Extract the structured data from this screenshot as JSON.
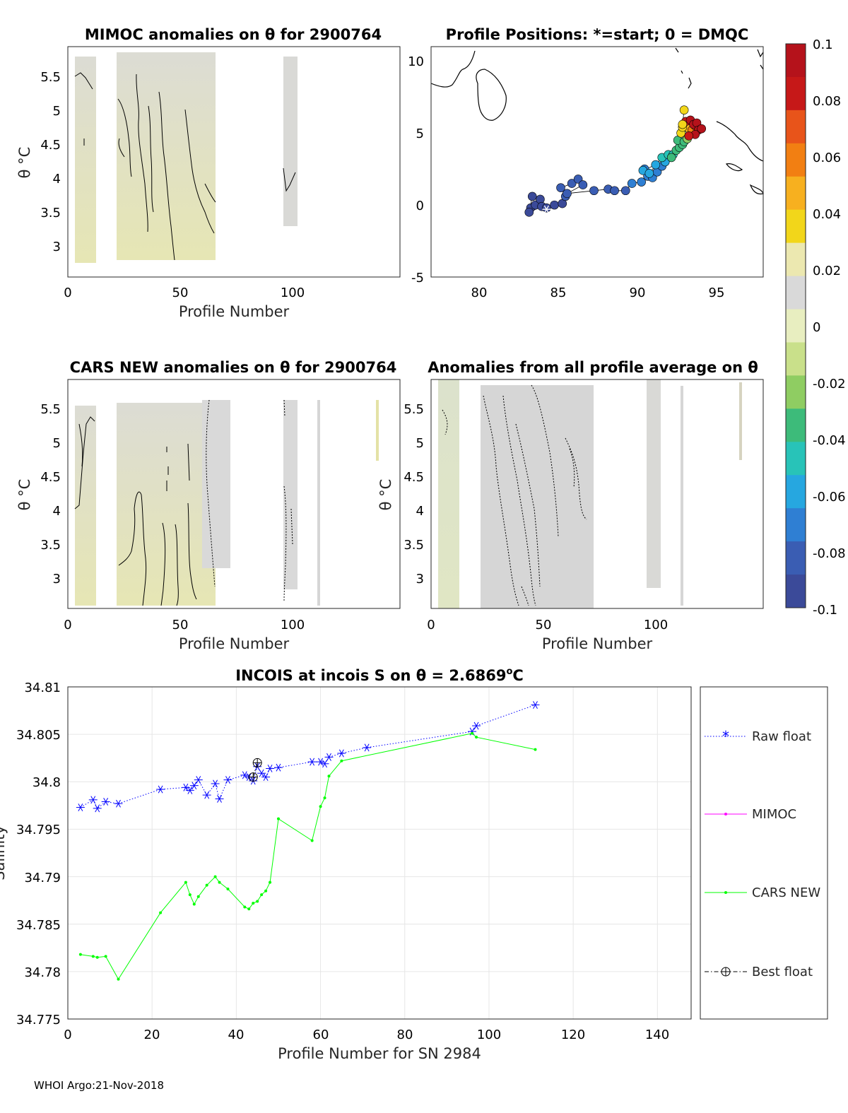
{
  "footer": "WHOI Argo:21-Nov-2018",
  "colorbar": {
    "ticks": [
      "0.1",
      "0.08",
      "0.06",
      "0.04",
      "0.02",
      "0",
      "-0.02",
      "-0.04",
      "-0.06",
      "-0.08",
      "-0.1"
    ],
    "colors": [
      "#3b4a99",
      "#3a5db3",
      "#2f7fd3",
      "#26a7e0",
      "#28c3b8",
      "#3dbb7a",
      "#8fcd62",
      "#c9e08a",
      "#e8eec0",
      "#d9d9d9",
      "#ece8b0",
      "#f2d61a",
      "#f7b01f",
      "#f27f12",
      "#e8541a",
      "#c61818",
      "#b5121b"
    ]
  },
  "panel1": {
    "title": "MIMOC anomalies on θ  for 2900764",
    "ylabel": "θ °C",
    "xlabel": "Profile Number",
    "xticks": [
      "0",
      "50",
      "100"
    ],
    "yticks": [
      "5.5",
      "5",
      "4.5",
      "4",
      "3.5",
      "3"
    ]
  },
  "panel2": {
    "title": "Profile Positions: *=start; 0 = DMQC",
    "xticks": [
      "80",
      "85",
      "90",
      "95"
    ],
    "yticks": [
      "10",
      "5",
      "0",
      "-5"
    ]
  },
  "panel3": {
    "title": "CARS NEW anomalies on θ for 2900764",
    "ylabel": "θ °C",
    "xlabel": "Profile Number",
    "xticks": [
      "0",
      "50",
      "100"
    ],
    "yticks": [
      "5.5",
      "5",
      "4.5",
      "4",
      "3.5",
      "3"
    ]
  },
  "panel4": {
    "title": "Anomalies from all profile average on θ",
    "ylabel": "θ °C",
    "xlabel": "Profile Number",
    "xticks": [
      "0",
      "50",
      "100"
    ],
    "yticks": [
      "5.5",
      "5",
      "4.5",
      "4",
      "3.5",
      "3"
    ]
  },
  "chart_data": [
    {
      "type": "line",
      "title": "INCOIS at incois S on θ = 2.6869°C",
      "title_main": "INCOIS at incois S on θ = 2.6869",
      "title_unit": "o",
      "title_tail": "C",
      "xlabel": "Profile Number for SN 2984",
      "ylabel": "Salinity",
      "xlim": [
        0,
        148
      ],
      "ylim": [
        34.775,
        34.81
      ],
      "xticks": [
        "0",
        "20",
        "40",
        "60",
        "80",
        "100",
        "120",
        "140"
      ],
      "yticks": [
        "34.81",
        "34.805",
        "34.8",
        "34.795",
        "34.79",
        "34.785",
        "34.78",
        "34.775"
      ],
      "grid": true,
      "legend_position": "right",
      "series": [
        {
          "name": "Raw float",
          "color": "#0000ff",
          "style": "dotted-star",
          "x": [
            3,
            6,
            7,
            9,
            12,
            22,
            28,
            29,
            30,
            31,
            33,
            35,
            36,
            38,
            42,
            43,
            44,
            45,
            46,
            47,
            48,
            50,
            58,
            60,
            61,
            62,
            65,
            71,
            96,
            97,
            111
          ],
          "y": [
            34.7973,
            34.7981,
            34.7972,
            34.7979,
            34.7977,
            34.7992,
            34.7994,
            34.7991,
            34.7996,
            34.8002,
            34.7986,
            34.7998,
            34.7982,
            34.8002,
            34.8007,
            34.8005,
            34.8001,
            34.8016,
            34.8009,
            34.8005,
            34.8014,
            34.8015,
            34.8021,
            34.8021,
            34.8019,
            34.8026,
            34.803,
            34.8036,
            34.8053,
            34.8059,
            34.8081
          ]
        },
        {
          "name": "MIMOC",
          "color": "#ff00ff",
          "style": "solid-dot",
          "x": [],
          "y": []
        },
        {
          "name": "CARS NEW",
          "color": "#00ff00",
          "style": "solid-dot",
          "x": [
            3,
            6,
            7,
            9,
            12,
            22,
            28,
            29,
            30,
            31,
            33,
            35,
            36,
            38,
            42,
            43,
            44,
            45,
            46,
            47,
            48,
            50,
            58,
            60,
            61,
            62,
            65,
            96,
            97,
            111
          ],
          "y": [
            34.7818,
            34.7816,
            34.7815,
            34.7816,
            34.7792,
            34.7862,
            34.7894,
            34.7881,
            34.7871,
            34.7879,
            34.7891,
            34.79,
            34.7894,
            34.7887,
            34.7868,
            34.7866,
            34.7872,
            34.7874,
            34.7881,
            34.7885,
            34.7894,
            34.7961,
            34.7938,
            34.7974,
            34.7983,
            34.8006,
            34.8022,
            34.8051,
            34.8047,
            34.8034
          ]
        },
        {
          "name": "Best float",
          "color": "#000000",
          "style": "dashdot-circle",
          "x": [
            44,
            45
          ],
          "y": [
            34.8005,
            34.802
          ]
        }
      ]
    },
    {
      "type": "scatter",
      "title": "Profile Positions: *=start; 0 = DMQC",
      "xlim": [
        77,
        98
      ],
      "ylim": [
        -5,
        11
      ],
      "colorbar_range": [
        -0.1,
        0.1
      ],
      "start": [
        84.3,
        -0.3
      ],
      "lon": [
        83.3,
        83.6,
        83.9,
        83.4,
        83.2,
        84.0,
        84.3,
        84.8,
        85.3,
        85.5,
        85.2,
        85.9,
        86.3,
        86.6,
        85.6,
        87.3,
        88.2,
        88.6,
        89.3,
        89.7,
        90.3,
        90.7,
        91.0,
        90.5,
        91.3,
        91.6,
        91.8,
        91.2,
        90.4,
        90.8,
        91.6,
        92.0,
        92.3,
        92.5,
        92.2,
        92.7,
        92.9,
        92.6,
        93.0,
        93.2,
        92.8,
        93.3,
        93.5,
        93.7,
        92.9,
        93.1,
        93.4,
        93.6,
        93.8,
        93.9,
        94.1,
        93.7,
        93.3,
        92.9,
        93.0
      ],
      "lat": [
        -0.2,
        0.0,
        0.4,
        0.6,
        -0.5,
        -0.1,
        -0.2,
        0.0,
        0.1,
        0.6,
        1.2,
        1.5,
        1.8,
        1.4,
        0.8,
        1.0,
        1.1,
        1.0,
        1.0,
        1.5,
        1.6,
        2.0,
        1.9,
        2.5,
        2.3,
        2.7,
        3.0,
        2.8,
        2.4,
        2.2,
        3.3,
        3.5,
        3.5,
        3.8,
        3.3,
        4.0,
        4.2,
        4.5,
        4.4,
        4.6,
        5.0,
        5.3,
        5.2,
        5.5,
        5.4,
        5.8,
        5.9,
        5.6,
        5.7,
        5.2,
        5.3,
        4.9,
        4.8,
        5.6,
        6.6
      ],
      "value": [
        -0.09,
        -0.09,
        -0.09,
        -0.09,
        -0.09,
        -0.09,
        -0.09,
        -0.09,
        -0.09,
        -0.085,
        -0.085,
        -0.085,
        -0.085,
        -0.085,
        -0.085,
        -0.08,
        -0.08,
        -0.08,
        -0.08,
        -0.075,
        -0.075,
        -0.07,
        -0.07,
        -0.07,
        -0.07,
        -0.065,
        -0.06,
        -0.06,
        -0.06,
        -0.06,
        -0.05,
        -0.05,
        -0.045,
        -0.04,
        -0.04,
        -0.035,
        -0.035,
        -0.03,
        -0.03,
        -0.02,
        0.03,
        0.05,
        0.06,
        0.07,
        0.03,
        0.08,
        0.09,
        0.09,
        0.1,
        0.1,
        0.09,
        0.1,
        0.08,
        0.04,
        0.03
      ]
    }
  ]
}
